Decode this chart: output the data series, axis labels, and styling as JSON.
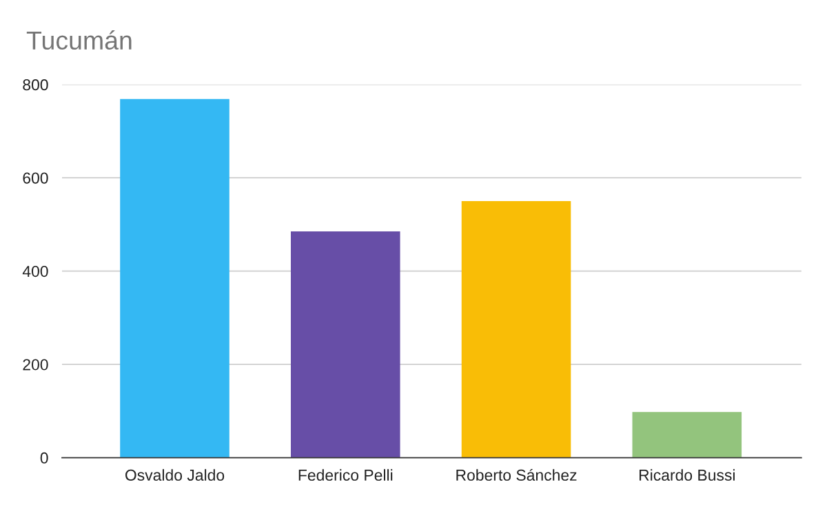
{
  "chart_data": {
    "type": "bar",
    "title": "Tucumán",
    "categories": [
      "Osvaldo Jaldo",
      "Federico Pelli",
      "Roberto Sánchez",
      "Ricardo Bussi"
    ],
    "values": [
      769,
      485,
      550,
      98
    ],
    "colors": [
      "#34b8f3",
      "#674ea7",
      "#f9bd06",
      "#93c47d"
    ],
    "ylim": [
      0,
      800
    ],
    "yticks": [
      0,
      200,
      400,
      600,
      800
    ],
    "grid": "y"
  }
}
